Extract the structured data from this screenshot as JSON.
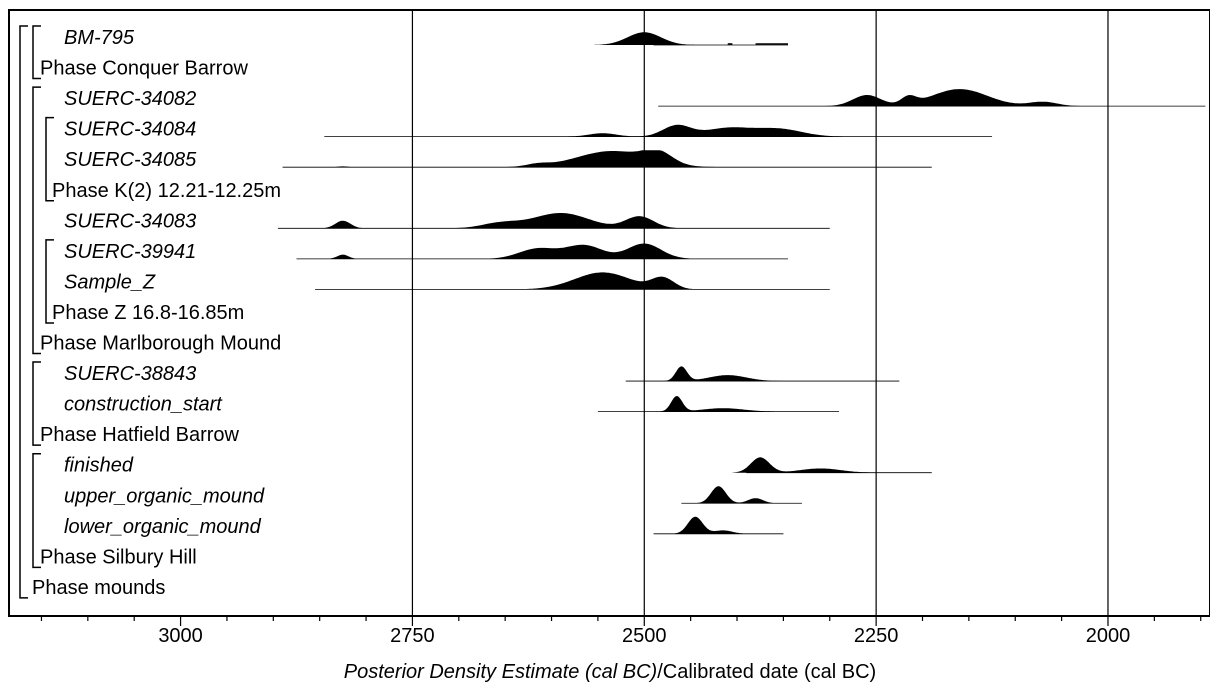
{
  "chart_data": {
    "type": "distribution-plot",
    "title": "",
    "xlabel_italic": "Posterior Density Estimate (cal BC)",
    "xlabel_sep": "/",
    "xlabel_regular": "Calibrated date (cal BC)",
    "xlim": [
      3185,
      1890
    ],
    "xticks": [
      3000,
      2750,
      2500,
      2250,
      2000
    ],
    "xtick_labels": [
      "3000",
      "2750",
      "2500",
      "2250",
      "2000"
    ],
    "grid_vertical": [
      2750,
      2500,
      2250,
      2000
    ],
    "rows": [
      {
        "label": "BM-795",
        "italic": true,
        "dist": true,
        "range": [
          2490,
          2345
        ],
        "peaks": [
          [
            2500,
            0.75,
            18
          ]
        ],
        "bits": [
          [
            2410,
            2405
          ],
          [
            2380,
            2345
          ]
        ]
      },
      {
        "label": "Phase Conquer Barrow",
        "italic": false,
        "dist": false
      },
      {
        "label": "SUERC-34082",
        "italic": true,
        "dist": true,
        "range": [
          2485,
          1895
        ],
        "peaks": [
          [
            2260,
            0.65,
            15
          ],
          [
            2215,
            0.45,
            8
          ],
          [
            2160,
            1.0,
            30
          ],
          [
            2070,
            0.25,
            15
          ]
        ]
      },
      {
        "label": "SUERC-34084",
        "italic": true,
        "dist": true,
        "range": [
          2845,
          2125
        ],
        "peaks": [
          [
            2545,
            0.2,
            15
          ],
          [
            2465,
            0.65,
            15
          ],
          [
            2410,
            0.5,
            25
          ],
          [
            2355,
            0.45,
            25
          ]
        ]
      },
      {
        "label": "SUERC-34085",
        "italic": true,
        "dist": true,
        "range": [
          2890,
          2190
        ],
        "peaks": [
          [
            2825,
            0.05,
            5
          ],
          [
            2615,
            0.15,
            12
          ],
          [
            2535,
            0.95,
            38
          ],
          [
            2485,
            0.65,
            15
          ]
        ]
      },
      {
        "label": "Phase K(2) 12.21-12.25m",
        "italic": false,
        "dist": false
      },
      {
        "label": "SUERC-34083",
        "italic": true,
        "dist": true,
        "range": [
          2895,
          2300
        ],
        "peaks": [
          [
            2825,
            0.45,
            8
          ],
          [
            2655,
            0.3,
            20
          ],
          [
            2590,
            0.9,
            30
          ],
          [
            2505,
            0.7,
            15
          ]
        ]
      },
      {
        "label": "SUERC-39941",
        "italic": true,
        "dist": true,
        "range": [
          2875,
          2345
        ],
        "peaks": [
          [
            2825,
            0.25,
            6
          ],
          [
            2615,
            0.6,
            20
          ],
          [
            2565,
            0.8,
            20
          ],
          [
            2500,
            0.9,
            18
          ]
        ]
      },
      {
        "label": "Sample_Z",
        "italic": true,
        "dist": true,
        "range": [
          2855,
          2300
        ],
        "peaks": [
          [
            2545,
            1.0,
            30
          ],
          [
            2480,
            0.65,
            12
          ]
        ]
      },
      {
        "label": "Phase Z 16.8-16.85m",
        "italic": false,
        "dist": false
      },
      {
        "label": "Phase Marlborough Mound",
        "italic": false,
        "dist": false
      },
      {
        "label": "SUERC-38843",
        "italic": true,
        "dist": true,
        "range": [
          2520,
          2225
        ],
        "peaks": [
          [
            2460,
            0.85,
            6
          ],
          [
            2410,
            0.35,
            20
          ]
        ]
      },
      {
        "label": "construction_start",
        "italic": true,
        "dist": true,
        "range": [
          2550,
          2290
        ],
        "peaks": [
          [
            2465,
            0.9,
            6
          ],
          [
            2415,
            0.2,
            22
          ]
        ]
      },
      {
        "label": "Phase Hatfield Barrow",
        "italic": false,
        "dist": false
      },
      {
        "label": "finished",
        "italic": true,
        "dist": true,
        "range": [
          2390,
          2190
        ],
        "peaks": [
          [
            2375,
            0.9,
            10
          ],
          [
            2310,
            0.25,
            22
          ]
        ]
      },
      {
        "label": "upper_organic_mound",
        "italic": true,
        "dist": true,
        "range": [
          2460,
          2330
        ],
        "peaks": [
          [
            2420,
            1.0,
            8
          ],
          [
            2380,
            0.3,
            8
          ]
        ]
      },
      {
        "label": "lower_organic_mound",
        "italic": true,
        "dist": true,
        "range": [
          2490,
          2350
        ],
        "peaks": [
          [
            2445,
            1.0,
            8
          ],
          [
            2415,
            0.2,
            10
          ]
        ]
      },
      {
        "label": "Phase Silbury Hill",
        "italic": false,
        "dist": false
      },
      {
        "label": "Phase mounds",
        "italic": false,
        "dist": false
      }
    ],
    "phase_brackets": [
      {
        "name": "Phase mounds",
        "first": 0,
        "last": 18,
        "level": 0
      },
      {
        "name": "Phase Conquer Barrow",
        "first": 0,
        "last": 1,
        "level": 1
      },
      {
        "name": "Phase Marlborough Mound",
        "first": 2,
        "last": 10,
        "level": 1
      },
      {
        "name": "Phase K(2) 12.21-12.25m",
        "first": 3,
        "last": 5,
        "level": 2
      },
      {
        "name": "Phase Z 16.8-16.85m",
        "first": 7,
        "last": 9,
        "level": 2
      },
      {
        "name": "Phase Hatfield Barrow",
        "first": 11,
        "last": 13,
        "level": 1
      },
      {
        "name": "Phase Silbury Hill",
        "first": 14,
        "last": 17,
        "level": 1
      }
    ],
    "style": {
      "line_color": "#000000",
      "fill_color": "#000000",
      "background": "#ffffff"
    }
  }
}
